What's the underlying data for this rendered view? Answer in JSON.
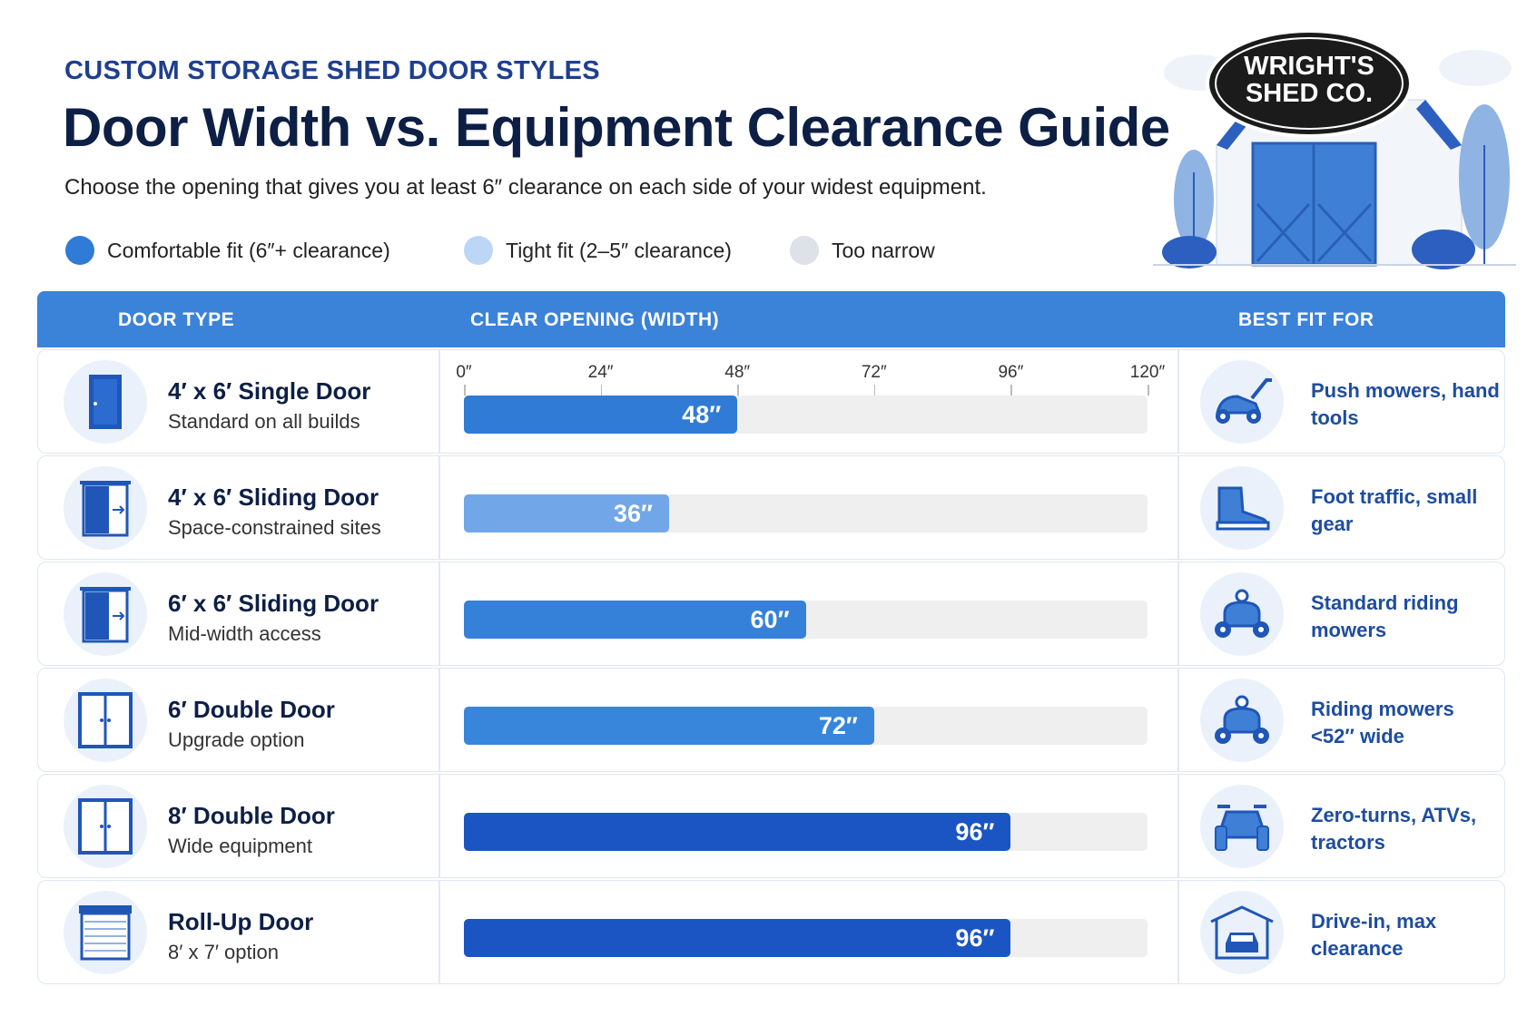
{
  "header": {
    "eyebrow": "CUSTOM STORAGE SHED DOOR STYLES",
    "title": "Door Width vs. Equipment Clearance Guide",
    "subtitle": "Choose the opening that gives you at least 6″ clearance on each side of your widest equipment."
  },
  "logo": {
    "line1": "WRIGHT'S",
    "line2": "SHED CO."
  },
  "legend": [
    {
      "label": "Comfortable fit (6″+ clearance)",
      "color": "#2f7bd6"
    },
    {
      "label": "Tight fit (2–5″ clearance)",
      "color": "#bcd6f5"
    },
    {
      "label": "Too narrow",
      "color": "#dde1e8"
    }
  ],
  "table": {
    "columns": [
      "DOOR TYPE",
      "CLEAR OPENING (WIDTH)",
      "BEST FIT FOR"
    ]
  },
  "chart_data": {
    "type": "bar",
    "orientation": "horizontal",
    "xlim": [
      0,
      120
    ],
    "ticks": [
      "0″",
      "24″",
      "48″",
      "72″",
      "96″",
      "120″"
    ],
    "tick_values": [
      0,
      24,
      48,
      72,
      96,
      120
    ],
    "unit": "″",
    "rows": [
      {
        "door": "4′ x 6′ Single Door",
        "note": "Standard on all builds",
        "value": 48,
        "label": "48″",
        "color": "#2f7bd6",
        "icon": "single-door-icon",
        "fit": "Push mowers, hand tools",
        "fit_icon": "push-mower-icon"
      },
      {
        "door": "4′ x 6′ Sliding Door",
        "note": "Space-constrained sites",
        "value": 36,
        "label": "36″",
        "color": "#71a7e9",
        "icon": "sliding-door-icon",
        "fit": "Foot traffic, small gear",
        "fit_icon": "boot-icon"
      },
      {
        "door": "6′ x 6′ Sliding Door",
        "note": "Mid-width access",
        "value": 60,
        "label": "60″",
        "color": "#3581da",
        "icon": "sliding-door-icon",
        "fit": "Standard riding mowers",
        "fit_icon": "riding-mower-icon"
      },
      {
        "door": "6′ Double Door",
        "note": "Upgrade option",
        "value": 72,
        "label": "72″",
        "color": "#3886dc",
        "icon": "double-door-icon",
        "fit": "Riding mowers <52″ wide",
        "fit_icon": "riding-mower-icon"
      },
      {
        "door": "8′ Double Door",
        "note": "Wide equipment",
        "value": 96,
        "label": "96″",
        "color": "#1a55c3",
        "icon": "double-door-icon",
        "fit": "Zero-turns, ATVs, tractors",
        "fit_icon": "atv-icon"
      },
      {
        "door": "Roll-Up Door",
        "note": "8′ x 7′ option",
        "value": 96,
        "label": "96″",
        "color": "#1a55c3",
        "icon": "roll-up-door-icon",
        "fit": "Drive-in, max clearance",
        "fit_icon": "garage-car-icon"
      }
    ]
  }
}
